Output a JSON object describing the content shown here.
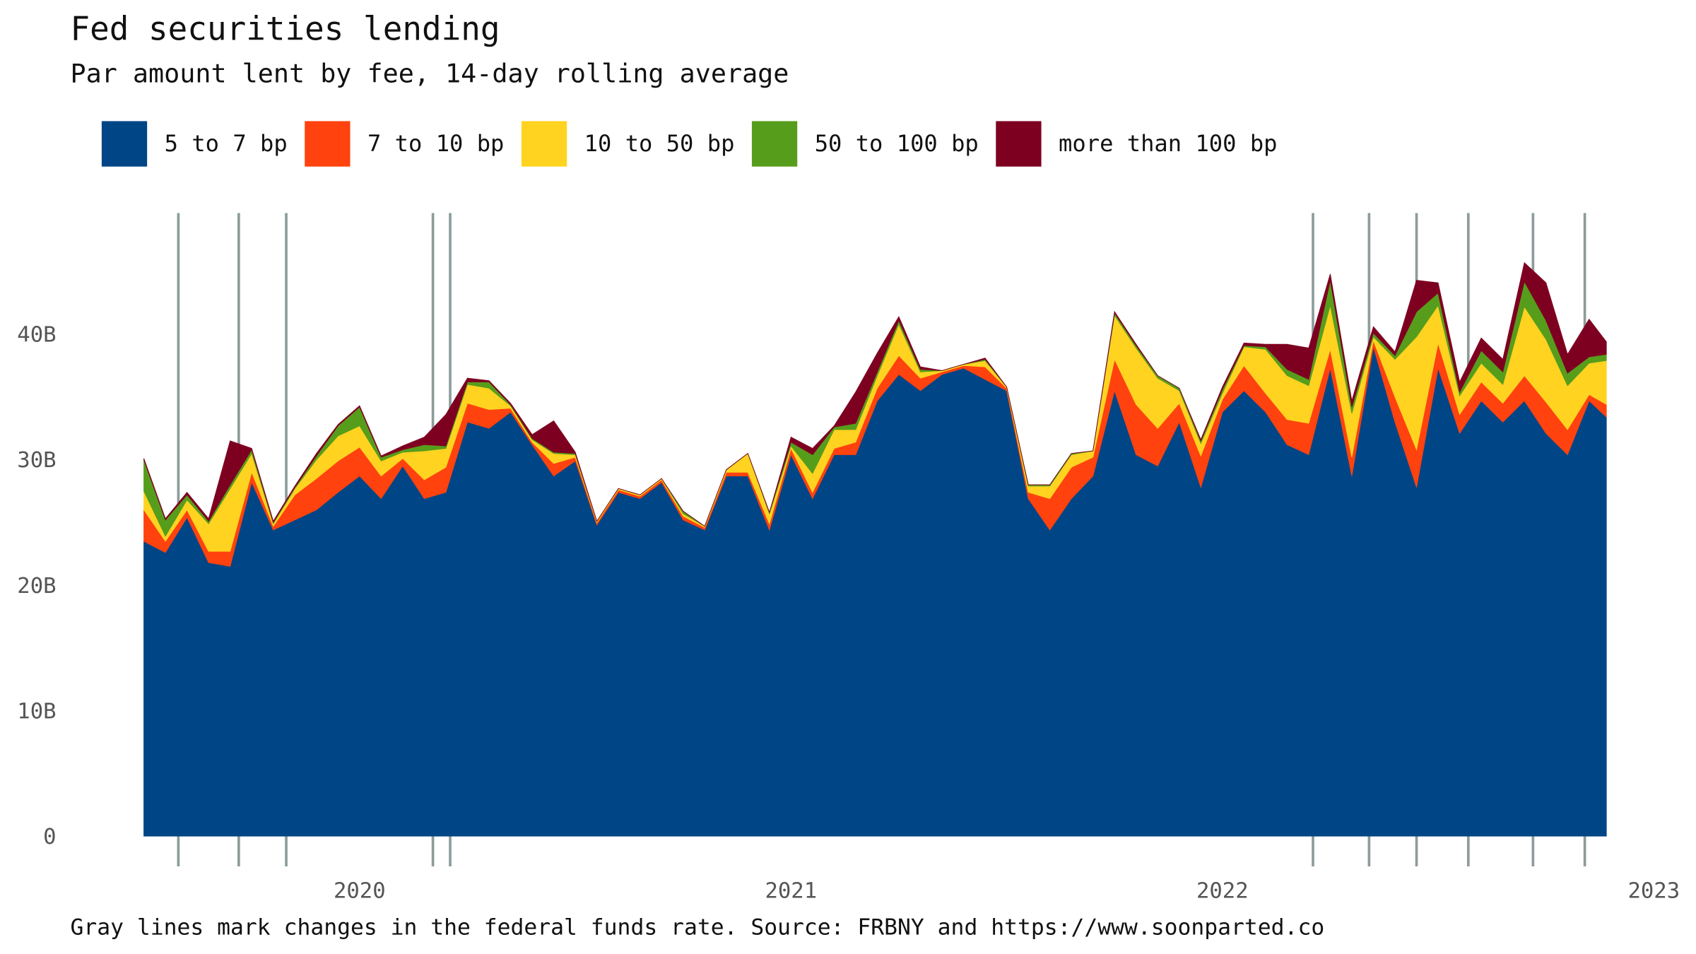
{
  "chart_data": {
    "type": "stacked_area",
    "title": "Fed securities lending",
    "subtitle": "Par amount lent by fee, 14-day rolling average",
    "caption": "Gray lines mark changes in the federal funds rate. Source: FRBNY and https://www.soonparted.co",
    "x": [
      2019.5,
      2019.55,
      2019.6,
      2019.65,
      2019.7,
      2019.75,
      2019.8,
      2019.85,
      2019.9,
      2019.95,
      2020.0,
      2020.05,
      2020.1,
      2020.15,
      2020.2,
      2020.25,
      2020.3,
      2020.35,
      2020.4,
      2020.45,
      2020.5,
      2020.55,
      2020.6,
      2020.65,
      2020.7,
      2020.75,
      2020.8,
      2020.85,
      2020.9,
      2020.95,
      2021.0,
      2021.05,
      2021.1,
      2021.15,
      2021.2,
      2021.25,
      2021.3,
      2021.35,
      2021.4,
      2021.45,
      2021.5,
      2021.55,
      2021.6,
      2021.65,
      2021.7,
      2021.75,
      2021.8,
      2021.85,
      2021.9,
      2021.95,
      2022.0,
      2022.05,
      2022.1,
      2022.15,
      2022.2,
      2022.25,
      2022.3,
      2022.35,
      2022.4,
      2022.45,
      2022.5,
      2022.55,
      2022.6,
      2022.65,
      2022.7,
      2022.75,
      2022.8,
      2022.85,
      2022.89
    ],
    "series": [
      {
        "name": "5 to 7 bp",
        "color": "#004586",
        "values": [
          23.5,
          22.6,
          25.4,
          21.8,
          21.5,
          28.2,
          24.4,
          25.2,
          26,
          27.4,
          28.7,
          26.9,
          29.5,
          26.9,
          27.4,
          33,
          32.5,
          33.8,
          31.2,
          28.7,
          29.9,
          24.8,
          27.4,
          26.9,
          28.2,
          25.2,
          24.4,
          28.7,
          28.7,
          24.4,
          30.4,
          26.9,
          30.4,
          30.4,
          34.7,
          36.8,
          35.5,
          36.8,
          37.3,
          36.4,
          35.5,
          26.9,
          24.4,
          26.9,
          28.7,
          35.5,
          30.4,
          29.5,
          33,
          27.8,
          33.8,
          35.5,
          33.8,
          31.2,
          30.4,
          37.3,
          28.7,
          39,
          33,
          27.8,
          37.3,
          32.1,
          34.7,
          33,
          34.7,
          32.1,
          30.4,
          34.7,
          33.4
        ]
      },
      {
        "name": "7 to 10 bp",
        "color": "#ff420e",
        "values": [
          2.5,
          0.9,
          0.6,
          0.9,
          1.2,
          0.8,
          0.3,
          2,
          2.5,
          2.5,
          2.3,
          1.8,
          0.6,
          1.5,
          2,
          1.5,
          1.5,
          0.3,
          0.2,
          1,
          0.3,
          0.2,
          0.2,
          0.2,
          0.2,
          0.3,
          0.2,
          0.3,
          0.3,
          0.5,
          0.5,
          0.5,
          0.5,
          1,
          1,
          1.5,
          1,
          0.2,
          0.2,
          1,
          0.2,
          0.5,
          2.5,
          2.5,
          1.5,
          2.5,
          4,
          3,
          1.5,
          2.5,
          1,
          2,
          1.5,
          2,
          2.5,
          1.5,
          1.5,
          0.5,
          2,
          3,
          2,
          1.5,
          1.5,
          1.5,
          2,
          2.5,
          2,
          0.5,
          1
        ]
      },
      {
        "name": "10 to 50 bp",
        "color": "#ffd320",
        "values": [
          1.5,
          0.4,
          0.8,
          2.2,
          5,
          1.5,
          0.2,
          0.5,
          1.5,
          2,
          1.7,
          1.2,
          0.5,
          2.3,
          1.5,
          1.5,
          1.7,
          0.2,
          0.2,
          0.8,
          0.2,
          0.1,
          0.1,
          0.1,
          0.1,
          0.2,
          0.1,
          0.2,
          1.5,
          0.8,
          0.2,
          1.5,
          1.5,
          1,
          1,
          2.5,
          0.5,
          0.1,
          0.1,
          0.5,
          0.1,
          0.5,
          1,
          1,
          0.5,
          3.5,
          4.5,
          4,
          1,
          1,
          0.5,
          1.5,
          3.5,
          3.5,
          3,
          3.5,
          3.5,
          0.3,
          3,
          9,
          3,
          1.5,
          1.5,
          1.5,
          5.5,
          5,
          3.5,
          2.5,
          3.5
        ]
      },
      {
        "name": "50 to 100 bp",
        "color": "#579d1c",
        "values": [
          2.5,
          1.3,
          0.4,
          0.2,
          0.3,
          0.3,
          0.1,
          0.1,
          0.3,
          0.8,
          1.5,
          0.3,
          0.2,
          0.5,
          0.2,
          0.2,
          0.5,
          0.1,
          0.1,
          0.1,
          0.1,
          0,
          0,
          0,
          0,
          0.2,
          0,
          0,
          0,
          0.1,
          0.3,
          1.5,
          0.2,
          0.5,
          0.3,
          0.3,
          0.2,
          0,
          0,
          0.1,
          0,
          0.1,
          0.1,
          0.1,
          0,
          0.2,
          0.2,
          0.2,
          0.2,
          0.2,
          0.3,
          0.1,
          0.2,
          0.5,
          0.5,
          2,
          0.5,
          0.3,
          0.3,
          2,
          1,
          0.3,
          1,
          1,
          2,
          1.5,
          1,
          0.5,
          0.5
        ]
      },
      {
        "name": "more than 100 bp",
        "color": "#7e0021",
        "values": [
          0.1,
          0.1,
          0.2,
          0.2,
          3.5,
          0.1,
          0.1,
          0.1,
          0.2,
          0.1,
          0.1,
          0.1,
          0.3,
          0.6,
          2.5,
          0.3,
          0.1,
          0.1,
          0.3,
          2.5,
          0.1,
          0,
          0,
          0,
          0,
          0,
          0,
          0,
          0,
          0,
          0.4,
          0.5,
          0.1,
          2.5,
          1.5,
          0.3,
          0.2,
          0,
          0,
          0.1,
          0,
          0,
          0,
          0,
          0,
          0.1,
          0.1,
          0,
          0,
          0.1,
          0.2,
          0.2,
          0.2,
          2,
          2.5,
          0.5,
          0.5,
          0.5,
          0.3,
          2.5,
          0.8,
          0.8,
          1,
          1,
          1.5,
          3,
          1.5,
          3,
          1
        ]
      }
    ],
    "rate_changes": [
      2019.58,
      2019.72,
      2019.83,
      2020.17,
      2020.21,
      2022.21,
      2022.34,
      2022.45,
      2022.57,
      2022.72,
      2022.84
    ],
    "xlim": [
      2019.5,
      2023
    ],
    "xticks": [
      2020,
      2021,
      2022,
      2023
    ],
    "ylim": [
      0,
      50
    ],
    "yticks": [
      0,
      {
        "value": 10,
        "label": "10B"
      },
      {
        "value": 20,
        "label": "20B"
      },
      {
        "value": 30,
        "label": "30B"
      },
      {
        "value": 40,
        "label": "40B"
      }
    ],
    "grid": false,
    "legend": "top"
  }
}
